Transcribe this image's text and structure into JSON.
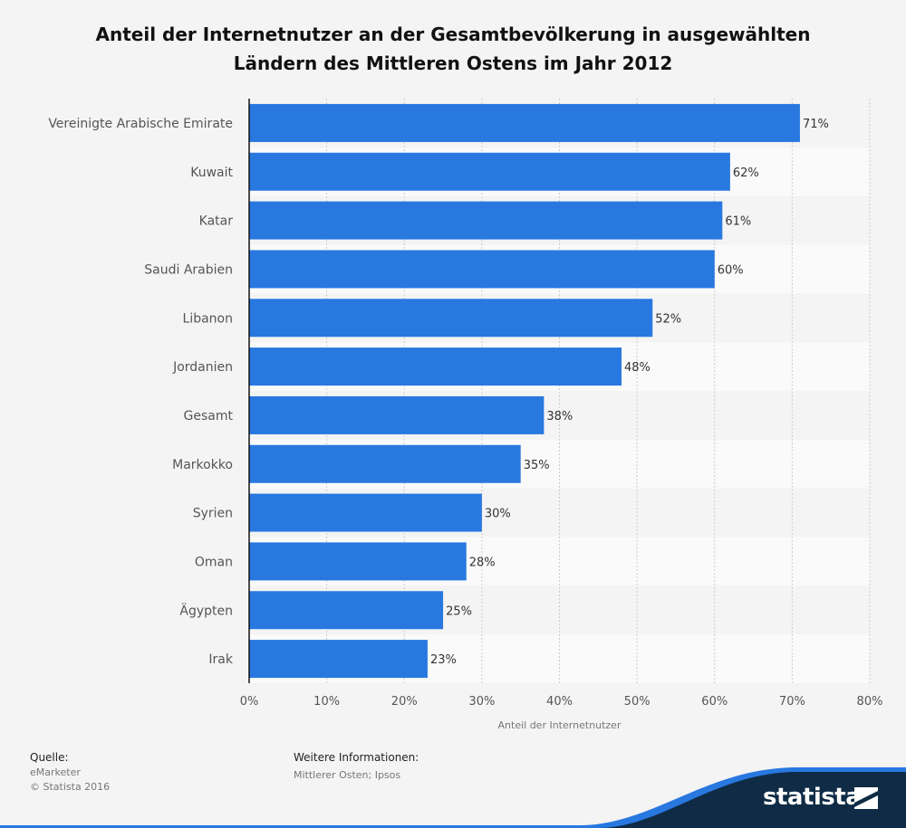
{
  "chart_data": {
    "type": "bar",
    "orientation": "horizontal",
    "title_line1": "Anteil der Internetnutzer an der Gesamtbevölkerung in ausgewählten",
    "title_line2": "Ländern des Mittleren Ostens im Jahr 2012",
    "xlabel": "Anteil der Internetnutzer",
    "categories": [
      "Vereinigte Arabische Emirate",
      "Kuwait",
      "Katar",
      "Saudi Arabien",
      "Libanon",
      "Jordanien",
      "Gesamt",
      "Markokko",
      "Syrien",
      "Oman",
      "Ägypten",
      "Irak"
    ],
    "values": [
      71,
      62,
      61,
      60,
      52,
      48,
      38,
      35,
      30,
      28,
      25,
      23
    ],
    "value_labels": [
      "71%",
      "62%",
      "61%",
      "60%",
      "52%",
      "48%",
      "38%",
      "35%",
      "30%",
      "28%",
      "25%",
      "23%"
    ],
    "xlim": [
      0,
      80
    ],
    "xticks": [
      "0%",
      "10%",
      "20%",
      "30%",
      "40%",
      "50%",
      "60%",
      "70%",
      "80%"
    ],
    "grid": true,
    "bar_color": "#2878e0"
  },
  "footer": {
    "source_label": "Quelle:",
    "source_lines": [
      "eMarketer",
      "© Statista 2016"
    ],
    "info_label": "Weitere Informationen:",
    "info_text": "Mittlerer Osten; Ipsos"
  },
  "brand": {
    "name": "statista",
    "color": "#0f2b45",
    "accent": "#2878e0"
  }
}
